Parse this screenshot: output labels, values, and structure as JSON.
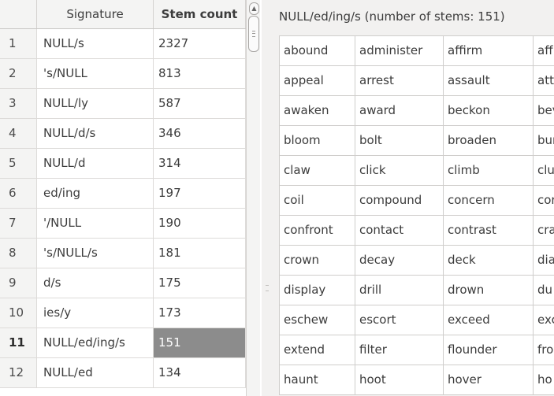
{
  "left_table": {
    "headers": {
      "signature": "Signature",
      "stem_count": "Stem count"
    },
    "rows": [
      {
        "num": "1",
        "signature": "NULL/s",
        "count": "2327"
      },
      {
        "num": "2",
        "signature": "'s/NULL",
        "count": "813"
      },
      {
        "num": "3",
        "signature": "NULL/ly",
        "count": "587"
      },
      {
        "num": "4",
        "signature": "NULL/d/s",
        "count": "346"
      },
      {
        "num": "5",
        "signature": "NULL/d",
        "count": "314"
      },
      {
        "num": "6",
        "signature": "ed/ing",
        "count": "197"
      },
      {
        "num": "7",
        "signature": "'/NULL",
        "count": "190"
      },
      {
        "num": "8",
        "signature": "'s/NULL/s",
        "count": "181"
      },
      {
        "num": "9",
        "signature": "d/s",
        "count": "175"
      },
      {
        "num": "10",
        "signature": "ies/y",
        "count": "173"
      },
      {
        "num": "11",
        "signature": "NULL/ed/ing/s",
        "count": "151"
      },
      {
        "num": "12",
        "signature": "NULL/ed",
        "count": "134"
      }
    ],
    "selected_row": 10
  },
  "stems_panel": {
    "title": "NULL/ed/ing/s (number of stems: 151)",
    "rows": [
      [
        "abound",
        "administer",
        "affirm",
        "aff"
      ],
      [
        "appeal",
        "arrest",
        "assault",
        "att"
      ],
      [
        "awaken",
        "award",
        "beckon",
        "bev"
      ],
      [
        "bloom",
        "bolt",
        "broaden",
        "bur"
      ],
      [
        "claw",
        "click",
        "climb",
        "clu"
      ],
      [
        "coil",
        "compound",
        "concern",
        "cor"
      ],
      [
        "confront",
        "contact",
        "contrast",
        "cra"
      ],
      [
        "crown",
        "decay",
        "deck",
        "dia"
      ],
      [
        "display",
        "drill",
        "drown",
        "du"
      ],
      [
        "eschew",
        "escort",
        "exceed",
        "exc"
      ],
      [
        "extend",
        "filter",
        "flounder",
        "fro"
      ],
      [
        "haunt",
        "hoot",
        "hover",
        "ho"
      ]
    ]
  },
  "colors": {
    "selected_cell_bg": "#8c8c8c",
    "window_bg": "#f2f1f0"
  }
}
